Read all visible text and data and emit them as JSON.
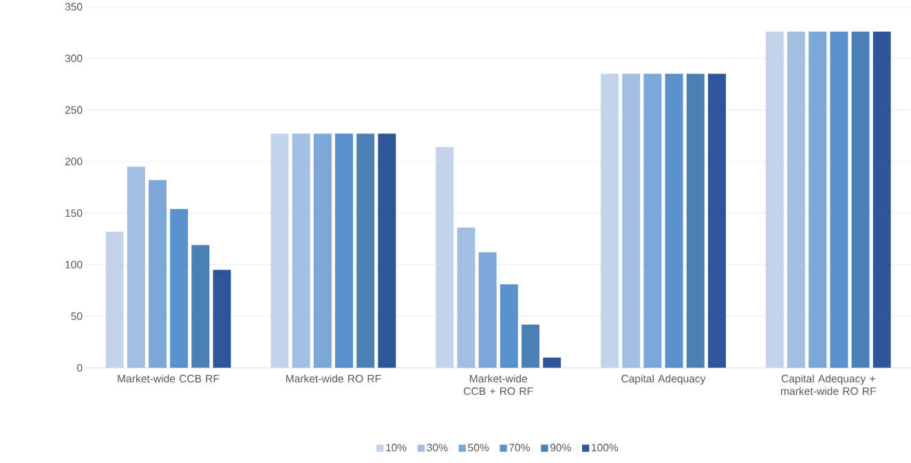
{
  "chart_data": {
    "type": "bar",
    "categories": [
      "Market-wide CCB RF",
      "Market-wide RO RF",
      "Market-wide CCB + RO RF",
      "Capital Adequacy",
      "Capital Adequacy + market-wide RO RF"
    ],
    "series": [
      {
        "name": "10%",
        "color": "#c2d3ea",
        "values": [
          132,
          227,
          214,
          285,
          326
        ]
      },
      {
        "name": "30%",
        "color": "#a2bfe2",
        "values": [
          195,
          227,
          136,
          285,
          326
        ]
      },
      {
        "name": "50%",
        "color": "#7aa7d8",
        "values": [
          182,
          227,
          112,
          285,
          326
        ]
      },
      {
        "name": "70%",
        "color": "#5891cb",
        "values": [
          154,
          227,
          81,
          285,
          326
        ]
      },
      {
        "name": "90%",
        "color": "#4a80b4",
        "values": [
          119,
          227,
          42,
          285,
          326
        ]
      },
      {
        "name": "100%",
        "color": "#2e5597",
        "values": [
          95,
          227,
          10,
          285,
          326
        ]
      }
    ],
    "ylim": [
      0,
      350
    ],
    "yticks": [
      0,
      50,
      100,
      150,
      200,
      250,
      300,
      350
    ],
    "grid": "y",
    "legend": "bottom"
  }
}
